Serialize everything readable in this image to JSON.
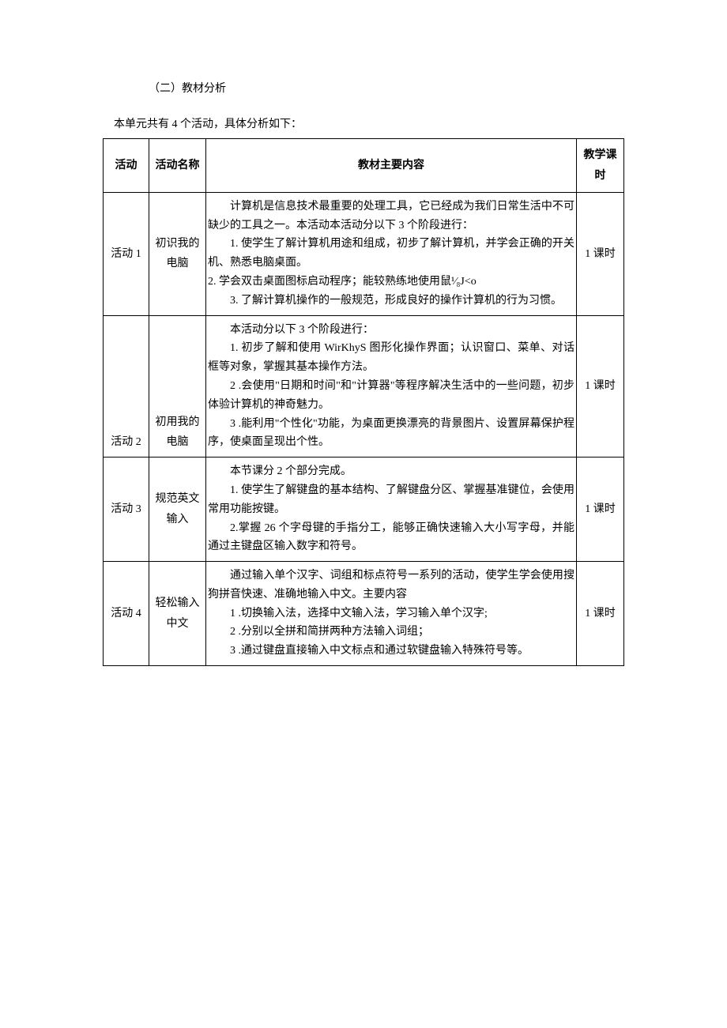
{
  "heading": "（二）教材分析",
  "intro": "本单元共有 4 个活动，具体分析如下：",
  "table": {
    "headers": {
      "activity": "活动",
      "name": "活动名称",
      "content": "教材主要内容",
      "hours": "教学课时"
    },
    "rows": [
      {
        "activity": "活动 1",
        "name": "初识我的电脑",
        "content_paras": [
          "计算机是信息技术最重要的处理工具，它已经成为我们日常生活中不可缺少的工具之一。本活动本活动分以下 3 个阶段进行：",
          "1. 使学生了解计算机用途和组成，初步了解计算机，并学会正确的开关机、熟悉电脑桌面。",
          "  2. 学会双击桌面图标启动程序；能较熟练地使用鼠¹⁄₈J<o",
          "3. 了解计算机操作的一般规范，形成良好的操作计算机的行为习惯。"
        ],
        "hours": "1 课时"
      },
      {
        "activity": "活动 2",
        "name": "初用我的电脑",
        "content_paras": [
          "本活动分以下 3 个阶段进行：",
          "1. 初步了解和使用 WirKhyS 图形化操作界面；认识窗口、菜单、对话框等对象，掌握其基本操作方法。",
          "2 .会使用\"日期和时间\"和\"计算器\"等程序解决生活中的一些问题，初步体验计算机的神奇魅力。",
          "3 .能利用\"个性化\"功能，为桌面更换漂亮的背景图片、设置屏幕保护程序，使桌面呈现出个性。"
        ],
        "hours": "1 课时"
      },
      {
        "activity": "活动 3",
        "name": "规范英文输入",
        "content_paras": [
          "本节课分 2 个部分完成。",
          "1. 使学生了解键盘的基本结构、了解键盘分区、掌握基准键位，会使用常用功能按键。",
          "2.掌握 26 个字母键的手指分工，能够正确快速输入大小写字母，并能通过主键盘区输入数字和符号。"
        ],
        "hours": "1 课时"
      },
      {
        "activity": "活动 4",
        "name": "轻松输入中文",
        "content_paras": [
          "通过输入单个汉字、词组和标点符号一系列的活动，使学生学会使用搜狗拼音快速、准确地输入中文。主要内容",
          "1 .切换输入法，选择中文输入法，学习输入单个汉字;",
          "2       .分别以全拼和简拼两种方法输入词组；",
          "3 .通过键盘直接输入中文标点和通过软键盘输入特殊符号等。"
        ],
        "hours": "1 课时"
      }
    ]
  }
}
